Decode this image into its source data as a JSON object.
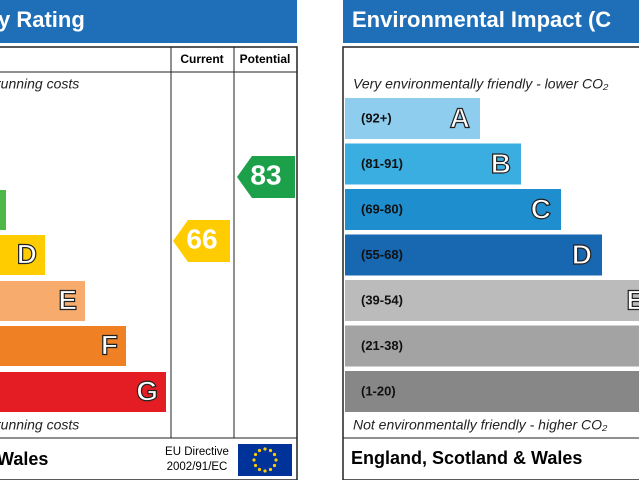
{
  "left": {
    "title": "y Rating",
    "column_headers": [
      "Current",
      "Potential"
    ],
    "top_note": "running costs",
    "bottom_note": "running costs",
    "band_letters": [
      "D",
      "E",
      "F",
      "G"
    ],
    "current": "66",
    "potential": "83",
    "footer": "Wales",
    "directive": [
      "EU Directive",
      "2002/91/EC"
    ]
  },
  "right": {
    "title": "Environmental Impact (C",
    "top_note": "Very environmentally friendly - lower CO₂",
    "bottom_note": "Not environmentally friendly - higher CO₂",
    "bands": [
      {
        "range": "(92+)",
        "letter": "A"
      },
      {
        "range": "(81-91)",
        "letter": "B"
      },
      {
        "range": "(69-80)",
        "letter": "C"
      },
      {
        "range": "(55-68)",
        "letter": "D"
      },
      {
        "range": "(39-54)",
        "letter": "E"
      },
      {
        "range": "(21-38)"
      },
      {
        "range": "(1-20)"
      }
    ],
    "footer": "England, Scotland & Wales"
  }
}
